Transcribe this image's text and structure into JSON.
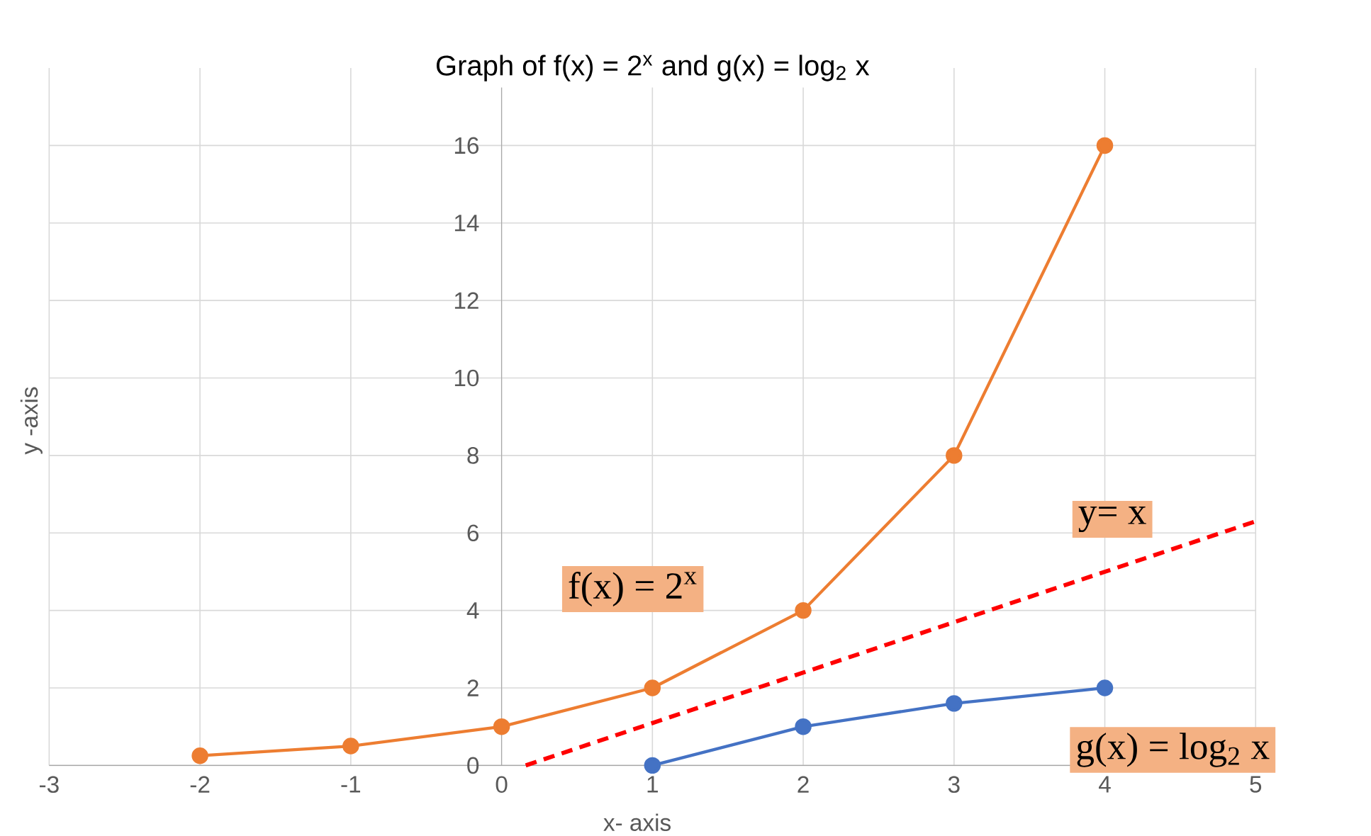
{
  "chart_data": {
    "type": "line",
    "title": "Graph of f(x) = 2$^{x}$ and g(x) = log$_{2}$ x",
    "xlabel": "x- axis",
    "ylabel": "y -axis",
    "xlim": [
      -3,
      5
    ],
    "xticks": [
      -3,
      -2,
      -1,
      0,
      1,
      2,
      3,
      4,
      5
    ],
    "ylim": [
      0,
      18
    ],
    "yticks": [
      0,
      2,
      4,
      6,
      8,
      10,
      12,
      14,
      16
    ],
    "grid": true,
    "marker": "circle",
    "series": [
      {
        "name": "f(x) = 2$^{x}$",
        "color": "#ed7d31",
        "x": [
          -2,
          -1,
          0,
          1,
          2,
          3,
          4
        ],
        "values": [
          0.25,
          0.5,
          1,
          2,
          4,
          8,
          16
        ]
      },
      {
        "name": "g(x) = log$_{2}$ x",
        "color": "#4472c4",
        "x": [
          1,
          2,
          3,
          4
        ],
        "values": [
          0,
          1,
          1.6,
          2
        ]
      },
      {
        "name": "y= x",
        "color": "#ff0000",
        "line_style": "dashed",
        "marker": "none",
        "x": [
          0.16,
          5
        ],
        "values": [
          0,
          6.3
        ]
      }
    ]
  }
}
